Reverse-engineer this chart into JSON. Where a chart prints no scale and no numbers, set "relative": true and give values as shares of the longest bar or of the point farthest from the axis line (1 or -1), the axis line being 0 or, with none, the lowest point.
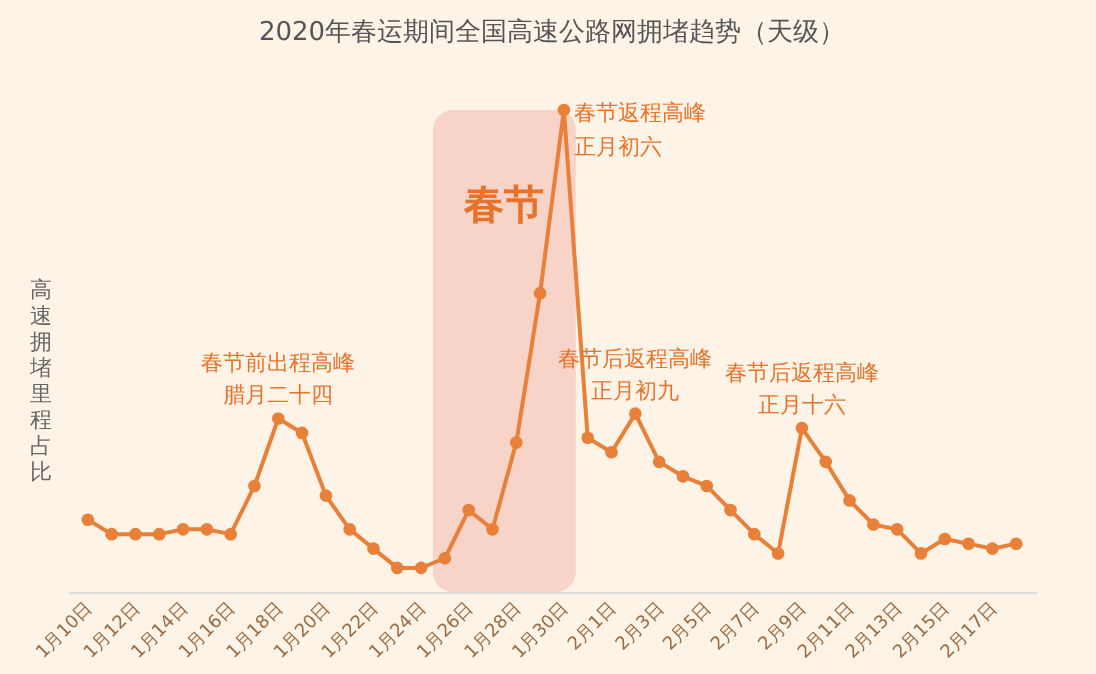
{
  "chart_data": {
    "type": "line",
    "title": "2020年春运期间全国高速公路网拥堵趋势（天级）",
    "ylabel": "高速拥堵里程占比",
    "relative": true,
    "x": [
      "2020-01-10",
      "2020-01-11",
      "2020-01-12",
      "2020-01-13",
      "2020-01-14",
      "2020-01-15",
      "2020-01-16",
      "2020-01-17",
      "2020-01-18",
      "2020-01-19",
      "2020-01-20",
      "2020-01-21",
      "2020-01-22",
      "2020-01-23",
      "2020-01-24",
      "2020-01-25",
      "2020-01-26",
      "2020-01-27",
      "2020-01-28",
      "2020-01-29",
      "2020-01-30",
      "2020-01-31",
      "2020-02-01",
      "2020-02-02",
      "2020-02-03",
      "2020-02-04",
      "2020-02-05",
      "2020-02-06",
      "2020-02-07",
      "2020-02-08",
      "2020-02-09",
      "2020-02-10",
      "2020-02-11",
      "2020-02-12",
      "2020-02-13",
      "2020-02-14",
      "2020-02-15",
      "2020-02-16",
      "2020-02-17",
      "2020-02-18"
    ],
    "xlim": [
      "2020-01-09T04:00",
      "2020-02-18T20:00"
    ],
    "xticks": [
      {
        "value": "2020-01-10",
        "label": "1月10日"
      },
      {
        "value": "2020-01-12",
        "label": "1月12日"
      },
      {
        "value": "2020-01-14",
        "label": "1月14日"
      },
      {
        "value": "2020-01-16",
        "label": "1月16日"
      },
      {
        "value": "2020-01-18",
        "label": "1月18日"
      },
      {
        "value": "2020-01-20",
        "label": "1月20日"
      },
      {
        "value": "2020-01-22",
        "label": "1月22日"
      },
      {
        "value": "2020-01-24",
        "label": "1月24日"
      },
      {
        "value": "2020-01-26",
        "label": "1月26日"
      },
      {
        "value": "2020-01-28",
        "label": "1月28日"
      },
      {
        "value": "2020-01-30",
        "label": "1月30日"
      },
      {
        "value": "2020-02-01",
        "label": "2月1日"
      },
      {
        "value": "2020-02-03",
        "label": "2月3日"
      },
      {
        "value": "2020-02-05",
        "label": "2月5日"
      },
      {
        "value": "2020-02-07",
        "label": "2月7日"
      },
      {
        "value": "2020-02-09",
        "label": "2月9日"
      },
      {
        "value": "2020-02-11",
        "label": "2月11日"
      },
      {
        "value": "2020-02-13",
        "label": "2月13日"
      },
      {
        "value": "2020-02-15",
        "label": "2月15日"
      },
      {
        "value": "2020-02-17",
        "label": "2月17日"
      }
    ],
    "series": [
      {
        "color": "#e8803a",
        "values": [
          0.15,
          0.12,
          0.12,
          0.12,
          0.13,
          0.13,
          0.12,
          0.22,
          0.36,
          0.33,
          0.2,
          0.13,
          0.09,
          0.05,
          0.05,
          0.07,
          0.17,
          0.13,
          0.31,
          0.62,
          1,
          0.32,
          0.29,
          0.37,
          0.27,
          0.24,
          0.22,
          0.17,
          0.12,
          0.08,
          0.34,
          0.27,
          0.19,
          0.14,
          0.13,
          0.08,
          0.11,
          0.1,
          0.09,
          0.1
        ]
      }
    ],
    "bands": [
      {
        "axis": "x",
        "from": "2020-01-24T12:00",
        "to": "2020-01-30T12:00",
        "label": "春节",
        "color": "#f5c9bd"
      }
    ],
    "annotations": [
      "春节前出程高峰",
      "腊月二十四",
      "春节返程高峰",
      "正月初六",
      "春节后返程高峰",
      "正月初九",
      "春节后返程高峰",
      "正月十六"
    ],
    "marker": "circle",
    "grid": false
  }
}
